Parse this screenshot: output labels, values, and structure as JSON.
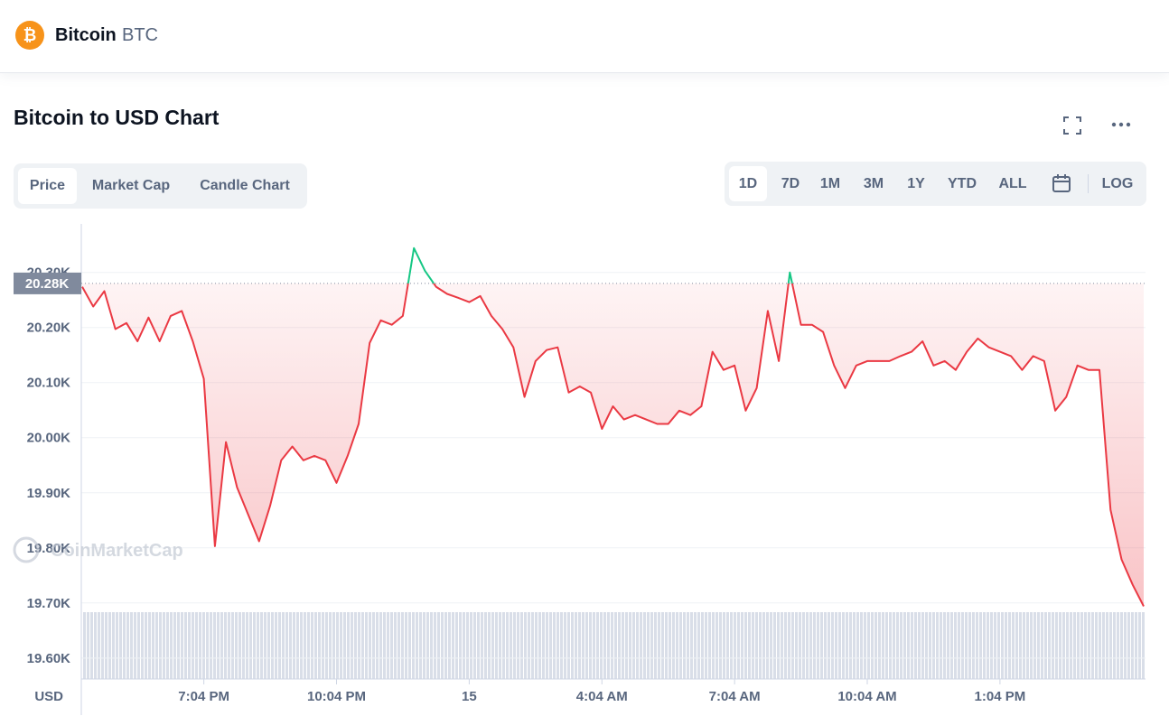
{
  "header": {
    "name": "Bitcoin",
    "symbol": "BTC"
  },
  "title": "Bitcoin to USD Chart",
  "tabs": [
    "Price",
    "Market Cap",
    "Candle Chart"
  ],
  "ranges": [
    "1D",
    "7D",
    "1M",
    "3M",
    "1Y",
    "YTD",
    "ALL"
  ],
  "log_button": "LOG",
  "watermark": "CoinMarketCap",
  "chart_data": {
    "type": "line",
    "y_unit": "USD",
    "color": "#ea3943",
    "color_above": "#16c784",
    "grid": true,
    "reference": {
      "value": 20280,
      "label": "20.28K"
    },
    "categories": [
      null,
      null,
      null,
      null,
      null,
      null,
      null,
      null,
      null,
      null,
      null,
      "7:04 PM",
      null,
      null,
      null,
      null,
      null,
      null,
      null,
      null,
      null,
      null,
      null,
      "10:04 PM",
      null,
      null,
      null,
      null,
      null,
      null,
      null,
      null,
      null,
      null,
      null,
      "15",
      null,
      null,
      null,
      null,
      null,
      null,
      null,
      null,
      null,
      null,
      null,
      "4:04 AM",
      null,
      null,
      null,
      null,
      null,
      null,
      null,
      null,
      null,
      null,
      null,
      "7:04 AM",
      null,
      null,
      null,
      null,
      null,
      null,
      null,
      null,
      null,
      null,
      null,
      "10:04 AM",
      null,
      null,
      null,
      null,
      null,
      null,
      null,
      null,
      null,
      null,
      null,
      "1:04 PM",
      null,
      null,
      null,
      null,
      null,
      null,
      null,
      null,
      null,
      null,
      null,
      null,
      null
    ],
    "values": [
      20274,
      20238,
      20266,
      20197,
      20208,
      20175,
      20218,
      20175,
      20221,
      20230,
      20175,
      20107,
      19803,
      19992,
      19910,
      19861,
      19812,
      19877,
      19959,
      19984,
      19959,
      19967,
      19959,
      19918,
      19967,
      20025,
      20172,
      20213,
      20205,
      20221,
      20344,
      20303,
      20274,
      20261,
      20254,
      20246,
      20257,
      20221,
      20197,
      20164,
      20074,
      20139,
      20159,
      20164,
      20082,
      20093,
      20082,
      20016,
      20057,
      20033,
      20041,
      20033,
      20025,
      20025,
      20049,
      20041,
      20057,
      20156,
      20123,
      20131,
      20049,
      20090,
      20230,
      20139,
      20300,
      20205,
      20205,
      20192,
      20131,
      20090,
      20131,
      20139,
      20139,
      20139,
      20148,
      20156,
      20175,
      20131,
      20139,
      20123,
      20156,
      20180,
      20164,
      20156,
      20148,
      20123,
      20148,
      20139,
      20049,
      20074,
      20131,
      20123,
      20123,
      19869,
      19779,
      19733,
      19694
    ],
    "ylim": [
      19562,
      20388
    ],
    "yticks": [
      {
        "value": 19600,
        "label": "19.60K"
      },
      {
        "value": 19700,
        "label": "19.70K"
      },
      {
        "value": 19800,
        "label": "19.80K"
      },
      {
        "value": 19900,
        "label": "19.90K"
      },
      {
        "value": 20000,
        "label": "20.00K"
      },
      {
        "value": 20100,
        "label": "20.10K"
      },
      {
        "value": 20200,
        "label": "20.20K"
      },
      {
        "value": 20300,
        "label": "20.30K"
      }
    ]
  }
}
